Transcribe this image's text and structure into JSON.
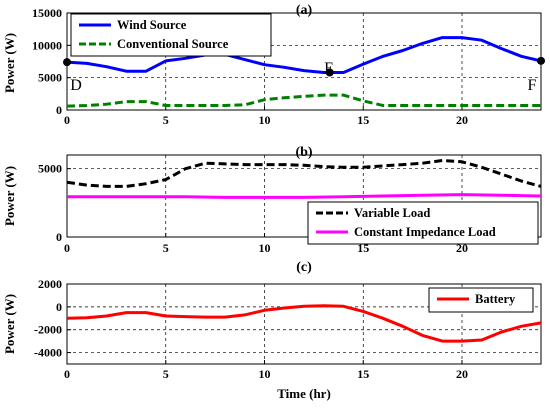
{
  "chart_data": [
    {
      "type": "line",
      "panel_label": "(a)",
      "xlabel": "",
      "ylabel": "Power (W)",
      "xlim": [
        0,
        24
      ],
      "ylim": [
        0,
        15000
      ],
      "xticks": [
        "0",
        "5",
        "10",
        "15",
        "20"
      ],
      "yticks": [
        "0",
        "5000",
        "10000",
        "15000"
      ],
      "xtick_values": [
        0,
        5,
        10,
        15,
        20
      ],
      "ytick_values": [
        0,
        5000,
        10000,
        15000
      ],
      "grid": true,
      "legend": "top-left",
      "series": [
        {
          "name": "Wind Source",
          "color": "#0000ff",
          "dash": "solid",
          "x": [
            0,
            1,
            2,
            3,
            4,
            5,
            6,
            7,
            8,
            9,
            10,
            11,
            12,
            13,
            14,
            15,
            16,
            17,
            18,
            19,
            20,
            21,
            22,
            23,
            24
          ],
          "y": [
            7400,
            7200,
            6700,
            6000,
            6000,
            7600,
            8000,
            8500,
            8600,
            7800,
            7000,
            6600,
            6100,
            5800,
            5800,
            7100,
            8300,
            9200,
            10300,
            11200,
            11200,
            10800,
            9500,
            8300,
            7600
          ]
        },
        {
          "name": "Conventional Source",
          "color": "#008000",
          "dash": "dashed",
          "x": [
            0,
            1,
            2,
            3,
            4,
            5,
            6,
            7,
            8,
            9,
            10,
            11,
            12,
            13,
            14,
            15,
            16,
            17,
            18,
            19,
            20,
            21,
            22,
            23,
            24
          ],
          "y": [
            600,
            700,
            900,
            1300,
            1300,
            700,
            700,
            700,
            700,
            800,
            1600,
            1900,
            2100,
            2300,
            2300,
            1400,
            700,
            700,
            700,
            700,
            700,
            700,
            700,
            700,
            700
          ]
        }
      ],
      "annotations": [
        {
          "text": "D",
          "x": 0,
          "y": 7400,
          "marker": true
        },
        {
          "text": "E",
          "x": 13.3,
          "y": 5800,
          "marker": true
        },
        {
          "text": "F",
          "x": 24,
          "y": 7600,
          "marker": true
        }
      ]
    },
    {
      "type": "line",
      "panel_label": "(b)",
      "xlabel": "",
      "ylabel": "Power (W)",
      "xlim": [
        0,
        24
      ],
      "ylim": [
        0,
        6000
      ],
      "xticks": [
        "0",
        "5",
        "10",
        "15",
        "20"
      ],
      "yticks": [
        "0",
        "5000"
      ],
      "xtick_values": [
        0,
        5,
        10,
        15,
        20
      ],
      "ytick_values": [
        0,
        5000
      ],
      "grid": true,
      "legend": "bottom-right",
      "series": [
        {
          "name": "Variable Load",
          "color": "#000000",
          "dash": "dashed",
          "x": [
            0,
            1,
            2,
            3,
            4,
            5,
            6,
            7,
            8,
            9,
            10,
            11,
            12,
            13,
            14,
            15,
            16,
            17,
            18,
            19,
            20,
            21,
            22,
            23,
            24
          ],
          "y": [
            4000,
            3800,
            3700,
            3700,
            3900,
            4200,
            5000,
            5400,
            5350,
            5300,
            5300,
            5300,
            5250,
            5150,
            5100,
            5100,
            5200,
            5300,
            5400,
            5600,
            5500,
            5100,
            4600,
            4100,
            3700
          ]
        },
        {
          "name": "Constant Impedance Load",
          "color": "#ff00ff",
          "dash": "solid",
          "x": [
            0,
            2,
            4,
            6,
            8,
            10,
            12,
            14,
            16,
            18,
            20,
            22,
            24
          ],
          "y": [
            2950,
            2950,
            2950,
            2950,
            2900,
            2900,
            2900,
            2950,
            3000,
            3050,
            3100,
            3050,
            3000
          ]
        }
      ]
    },
    {
      "type": "line",
      "panel_label": "(c)",
      "xlabel": "Time (hr)",
      "ylabel": "Power (W)",
      "xlim": [
        0,
        24
      ],
      "ylim": [
        -5000,
        2000
      ],
      "xticks": [
        "0",
        "5",
        "10",
        "15",
        "20"
      ],
      "yticks": [
        "-4000",
        "-2000",
        "0",
        "2000"
      ],
      "xtick_values": [
        0,
        5,
        10,
        15,
        20
      ],
      "ytick_values": [
        -4000,
        -2000,
        0,
        2000
      ],
      "grid": true,
      "legend": "top-right",
      "series": [
        {
          "name": "Battery",
          "color": "#ff0000",
          "dash": "solid",
          "x": [
            0,
            1,
            2,
            3,
            4,
            5,
            6,
            7,
            8,
            9,
            10,
            11,
            12,
            13,
            14,
            15,
            16,
            17,
            18,
            19,
            20,
            21,
            22,
            23,
            24
          ],
          "y": [
            -1000,
            -950,
            -800,
            -500,
            -500,
            -800,
            -850,
            -900,
            -900,
            -700,
            -300,
            -100,
            50,
            100,
            50,
            -400,
            -1000,
            -1700,
            -2500,
            -3000,
            -3000,
            -2900,
            -2200,
            -1700,
            -1400
          ]
        }
      ]
    }
  ]
}
